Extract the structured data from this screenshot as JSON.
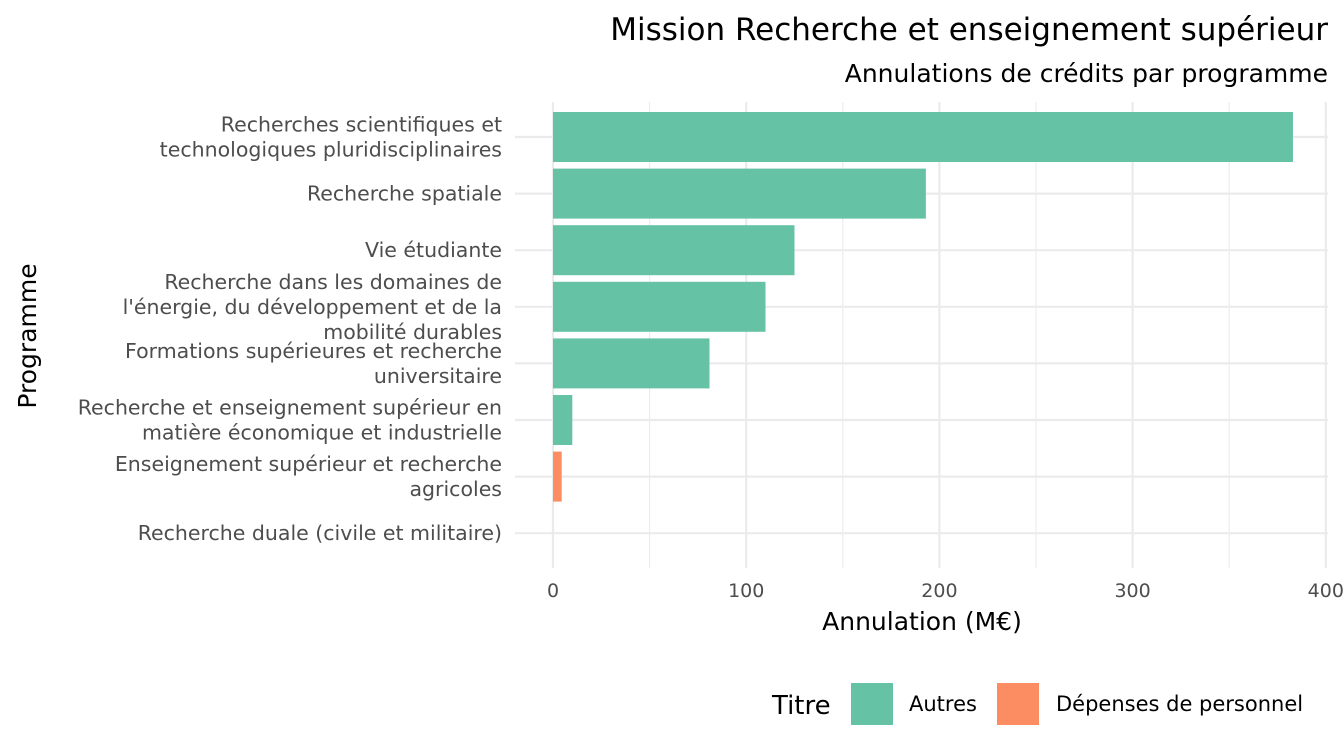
{
  "chart_data": {
    "type": "bar",
    "orientation": "horizontal",
    "title": "Mission Recherche et enseignement supérieur",
    "subtitle": "Annulations de crédits par programme",
    "xlabel": "Annulation (M€)",
    "ylabel": "Programme",
    "xlim": [
      0,
      400
    ],
    "xticks": [
      0,
      100,
      200,
      300,
      400
    ],
    "grid": true,
    "legend_title": "Titre",
    "legend_position": "bottom",
    "series_colors": {
      "Autres": "#66c2a5",
      "Dépenses de personnel": "#fc8d62"
    },
    "legend": [
      {
        "name": "Autres",
        "color": "#66c2a5"
      },
      {
        "name": "Dépenses de personnel",
        "color": "#fc8d62"
      }
    ],
    "categories": [
      {
        "label_lines": [
          "Recherches scientifiques et",
          "technologiques pluridisciplinaires"
        ],
        "value": 383,
        "series": "Autres"
      },
      {
        "label_lines": [
          "Recherche spatiale"
        ],
        "value": 193,
        "series": "Autres"
      },
      {
        "label_lines": [
          "Vie étudiante"
        ],
        "value": 125,
        "series": "Autres"
      },
      {
        "label_lines": [
          "Recherche dans les domaines de",
          "l'énergie, du développement et de la",
          "mobilité durables"
        ],
        "value": 110,
        "series": "Autres"
      },
      {
        "label_lines": [
          "Formations supérieures et recherche",
          "universitaire"
        ],
        "value": 81,
        "series": "Autres"
      },
      {
        "label_lines": [
          "Recherche et enseignement supérieur en",
          "matière économique et industrielle"
        ],
        "value": 10,
        "series": "Autres"
      },
      {
        "label_lines": [
          "Enseignement supérieur et recherche",
          "agricoles"
        ],
        "value": 4.5,
        "series": "Dépenses de personnel"
      },
      {
        "label_lines": [
          "Recherche duale (civile et militaire)"
        ],
        "value": 0,
        "series": "Autres"
      }
    ]
  }
}
